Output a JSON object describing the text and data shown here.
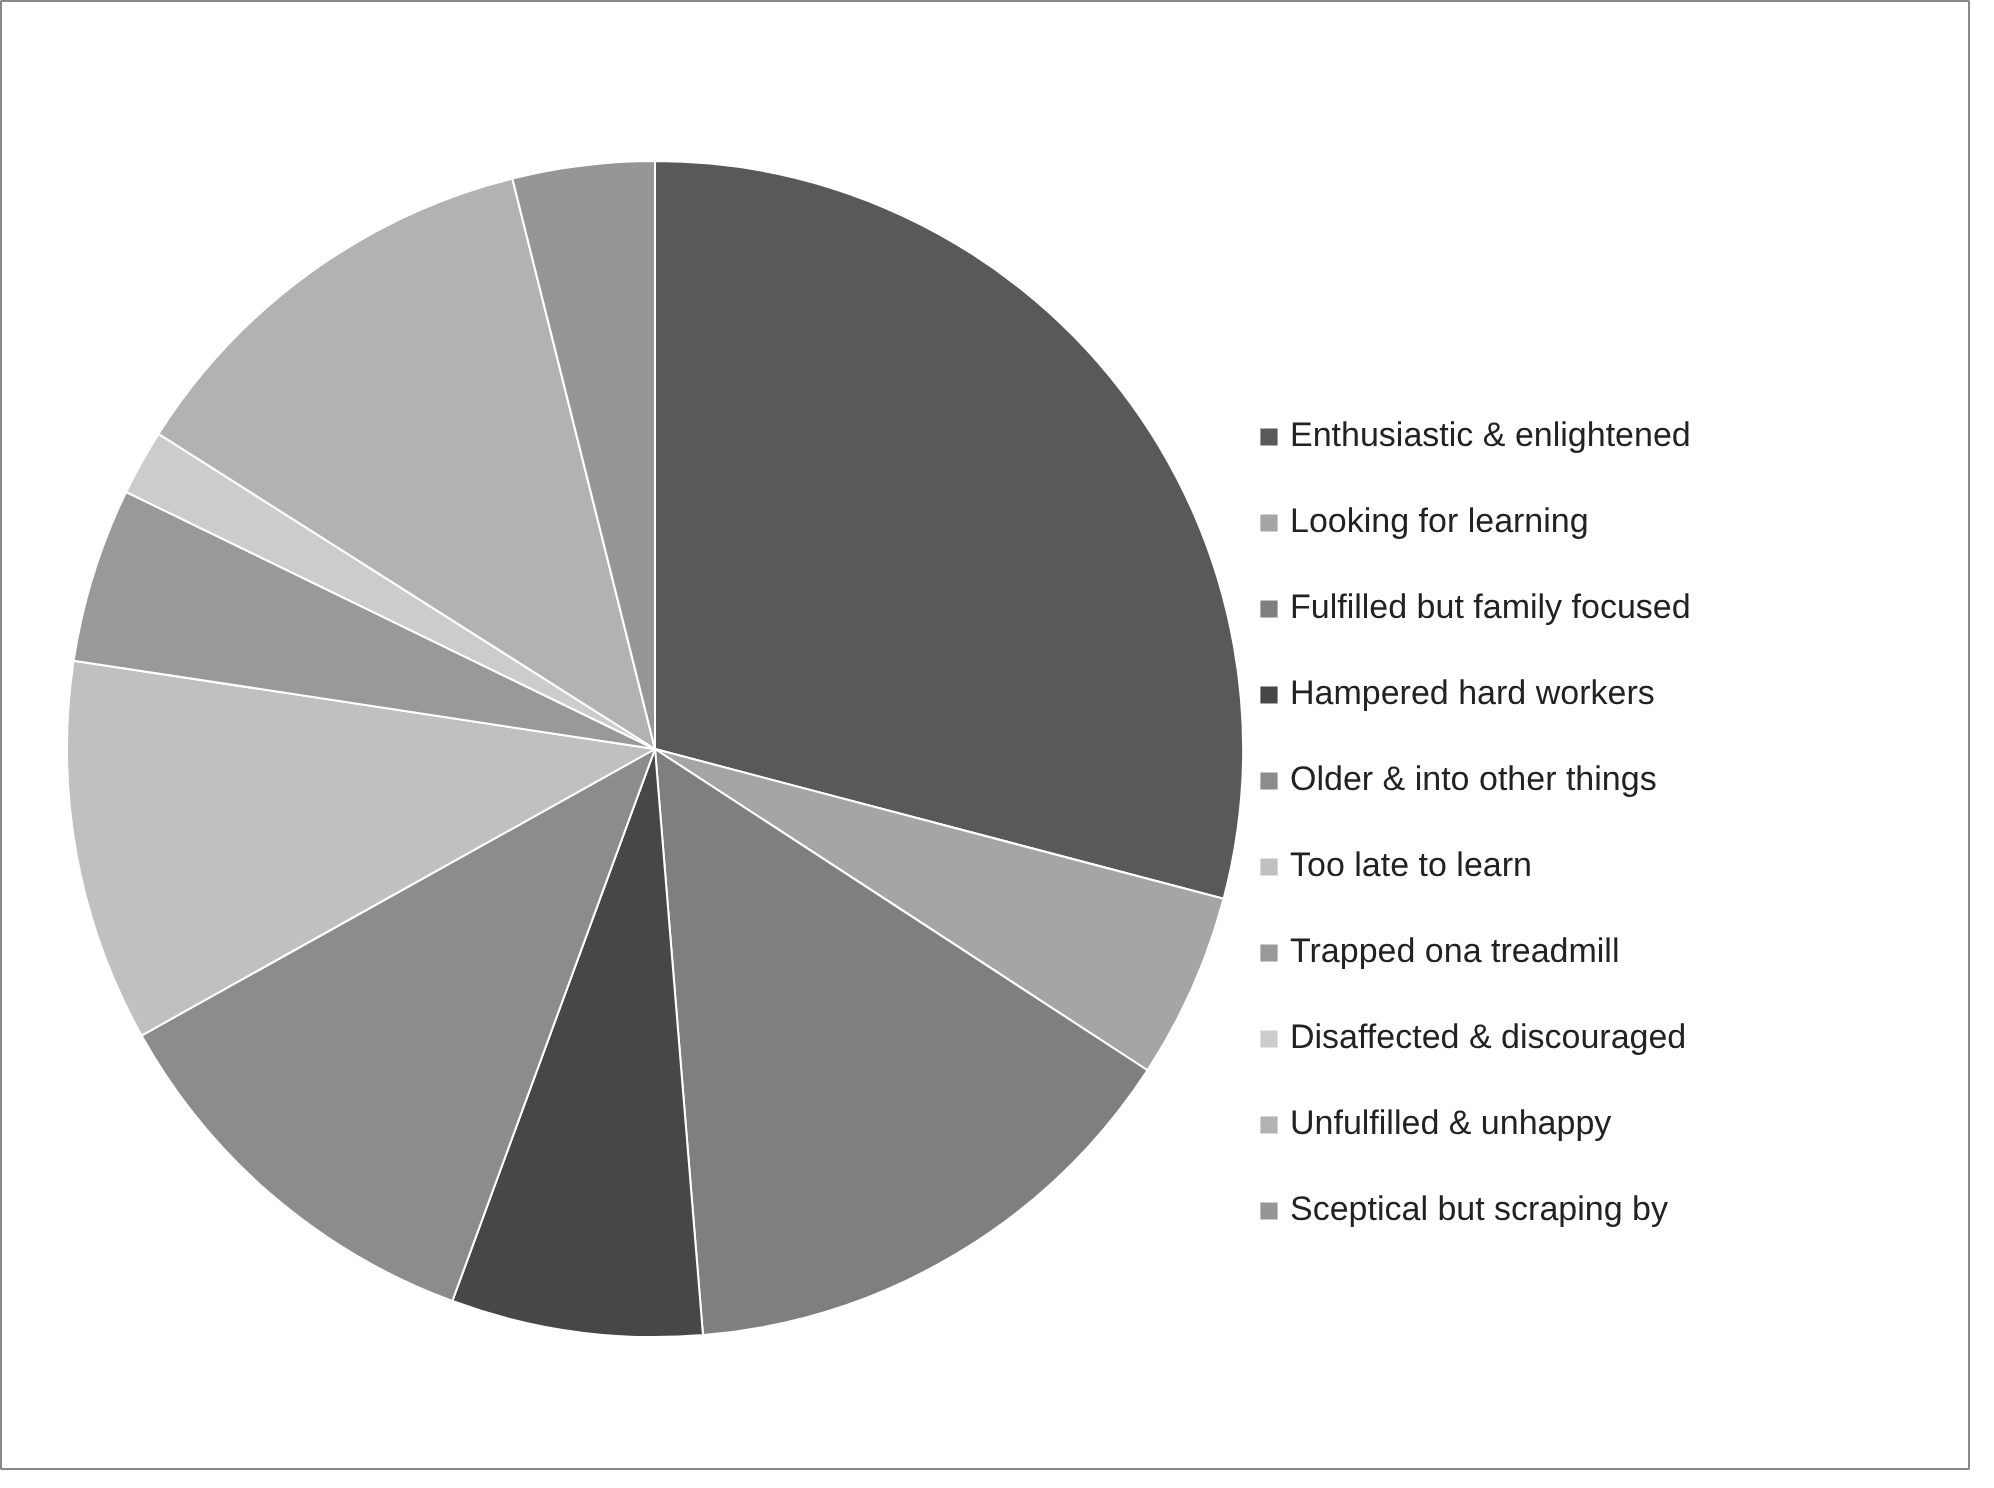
{
  "chart_data": {
    "type": "pie",
    "categories": [
      "Enthusiastic & enlightened",
      "Looking for learning",
      "Fulfilled but family focused",
      "Hampered hard workers",
      "Older & into other things",
      "Too late to learn",
      "Trapped ona treadmill",
      "Disaffected & discouraged",
      "Unfulfilled & unhappy",
      "Sceptical but scraping by"
    ],
    "values": [
      29.1,
      5.1,
      14.5,
      6.9,
      11.3,
      10.5,
      4.8,
      1.8,
      12.1,
      3.9
    ],
    "colors": [
      "#595959",
      "#a5a5a5",
      "#7f7f7f",
      "#474747",
      "#8c8c8c",
      "#c0c0c0",
      "#999999",
      "#cccccc",
      "#b2b2b2",
      "#969696"
    ],
    "legend": "right"
  }
}
